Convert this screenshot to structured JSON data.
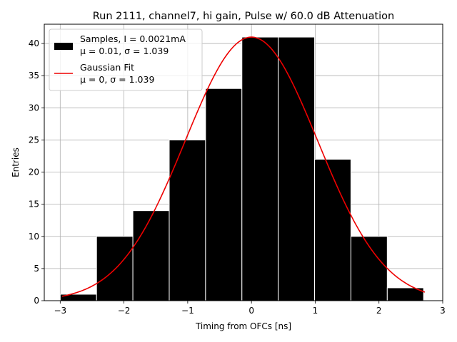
{
  "chart_data": {
    "type": "bar",
    "title": "Run 2111, channel7, hi gain, Pulse w/ 60.0 dB Attenuation",
    "xlabel": "Timing from OFCs [ns]",
    "ylabel": "Entries",
    "xlim": [
      -3.25,
      3.0
    ],
    "ylim": [
      0,
      43
    ],
    "grid": true,
    "legend_position": "top-left",
    "x_ticks": [
      "−3",
      "−2",
      "−1",
      "0",
      "1",
      "2",
      "3"
    ],
    "x_tick_values": [
      -3,
      -2,
      -1,
      0,
      1,
      2,
      3
    ],
    "y_ticks": [
      "0",
      "5",
      "10",
      "15",
      "20",
      "25",
      "30",
      "35",
      "40"
    ],
    "y_tick_values": [
      0,
      5,
      10,
      15,
      20,
      25,
      30,
      35,
      40
    ],
    "histogram": {
      "name_line1": "Samples, I = 0.0021mA",
      "name_line2": "μ = 0.01, σ = 1.039",
      "color": "#000000",
      "edge_color": "#ffffff",
      "bin_edges": [
        -3.0,
        -2.43,
        -1.86,
        -1.29,
        -0.72,
        -0.15,
        0.42,
        0.99,
        1.56,
        2.13,
        2.7
      ],
      "counts": [
        1,
        10,
        14,
        25,
        33,
        41,
        41,
        22,
        10,
        2
      ]
    },
    "fit": {
      "name_line1": "Gaussian Fit",
      "name_line2": "μ = 0, σ = 1.039",
      "color": "#ee0000",
      "mu": 0,
      "sigma": 1.039,
      "amplitude": 41,
      "x_range": [
        -2.97,
        2.72
      ]
    }
  }
}
